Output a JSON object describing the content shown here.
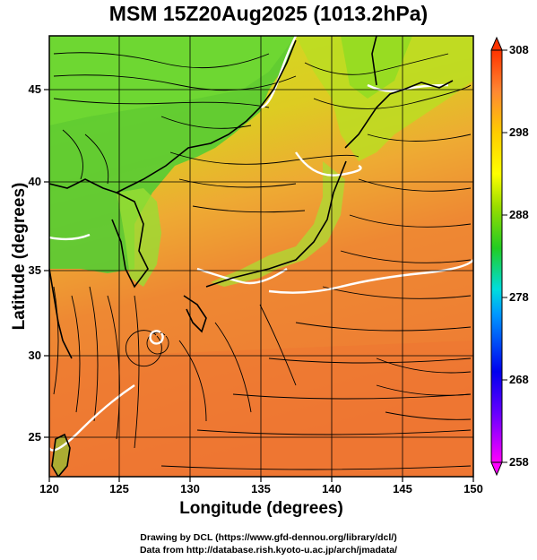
{
  "title": "MSM 15Z20Aug2025 (1013.2hPa)",
  "xlabel": "Longitude (degrees)",
  "ylabel": "Latitude  (degrees)",
  "credit_line1": "Drawing by DCL (https://www.gfd-dennou.org/library/dcl/)",
  "credit_line2": "Data from http://database.rish.kyoto-u.ac.jp/arch/jmadata/",
  "chart_data": {
    "type": "heatmap",
    "field": "temperature with streamlines",
    "xlim": [
      120,
      150
    ],
    "ylim": [
      22.5,
      48
    ],
    "x_ticks": [
      "120",
      "125",
      "130",
      "135",
      "140",
      "145",
      "150"
    ],
    "y_ticks": [
      "25",
      "30",
      "35",
      "40",
      "45"
    ],
    "colorbar": {
      "min": 258,
      "max": 308,
      "ticks": [
        "258",
        "268",
        "278",
        "288",
        "298",
        "308"
      ]
    },
    "grid": true
  },
  "colors": {
    "magenta": "#ff00ff",
    "blue": "#0000ff",
    "cyan": "#00ccff",
    "green": "#22cc22",
    "yellow": "#ffff00",
    "orange": "#ff9933",
    "red": "#ff0000"
  }
}
